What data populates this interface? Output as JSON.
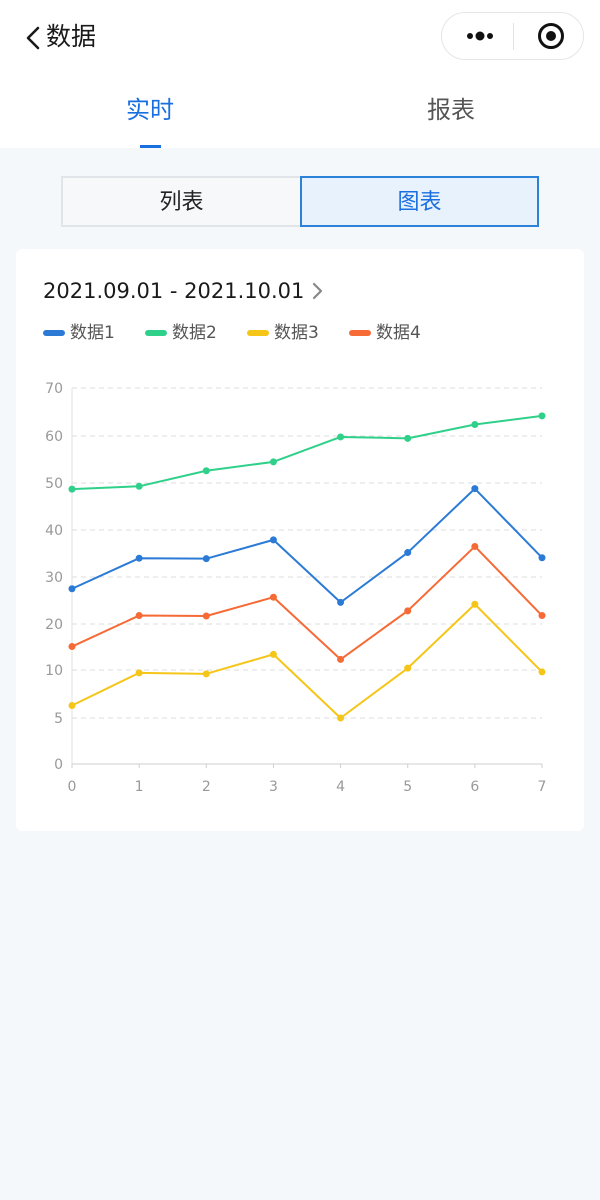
{
  "nav": {
    "title": "数据",
    "back_icon": "chevron-left-icon",
    "more_icon": "more-dots-icon",
    "close_icon": "target-circle-icon"
  },
  "tabs": [
    {
      "label": "实时",
      "active": true
    },
    {
      "label": "报表",
      "active": false
    }
  ],
  "segment": {
    "options": [
      "列表",
      "图表"
    ],
    "selected": "图表"
  },
  "card": {
    "date_range": "2021.09.01 - 2021.10.01",
    "date_chevron_icon": "chevron-right-icon"
  },
  "colors": {
    "accent": "#1a6fe0",
    "series1": "#2b7bd6",
    "series2": "#2fd08a",
    "series3": "#f5c518",
    "series4": "#f56a35"
  },
  "chart_data": {
    "type": "line",
    "x": [
      0,
      1,
      2,
      3,
      4,
      5,
      6,
      7
    ],
    "y_ticks": [
      0,
      5,
      10,
      20,
      30,
      40,
      50,
      60,
      70
    ],
    "grid": true,
    "legend_position": "top-left",
    "series": [
      {
        "name": "数据1",
        "color": "#2b7bd6",
        "values": [
          27.5,
          34,
          33.9,
          37.9,
          24.6,
          35.2,
          48.8,
          34.1
        ]
      },
      {
        "name": "数据2",
        "color": "#2fd08a",
        "values": [
          48.7,
          49.3,
          52.6,
          54.5,
          59.8,
          59.5,
          62.4,
          64.2
        ]
      },
      {
        "name": "数据3",
        "color": "#f5c518",
        "values": [
          6.3,
          9.7,
          9.6,
          13.4,
          5,
          10.4,
          24.2,
          9.8
        ]
      },
      {
        "name": "数据4",
        "color": "#f56a35",
        "values": [
          15.1,
          21.8,
          21.7,
          25.7,
          12.3,
          22.8,
          36.5,
          21.8
        ]
      }
    ]
  }
}
